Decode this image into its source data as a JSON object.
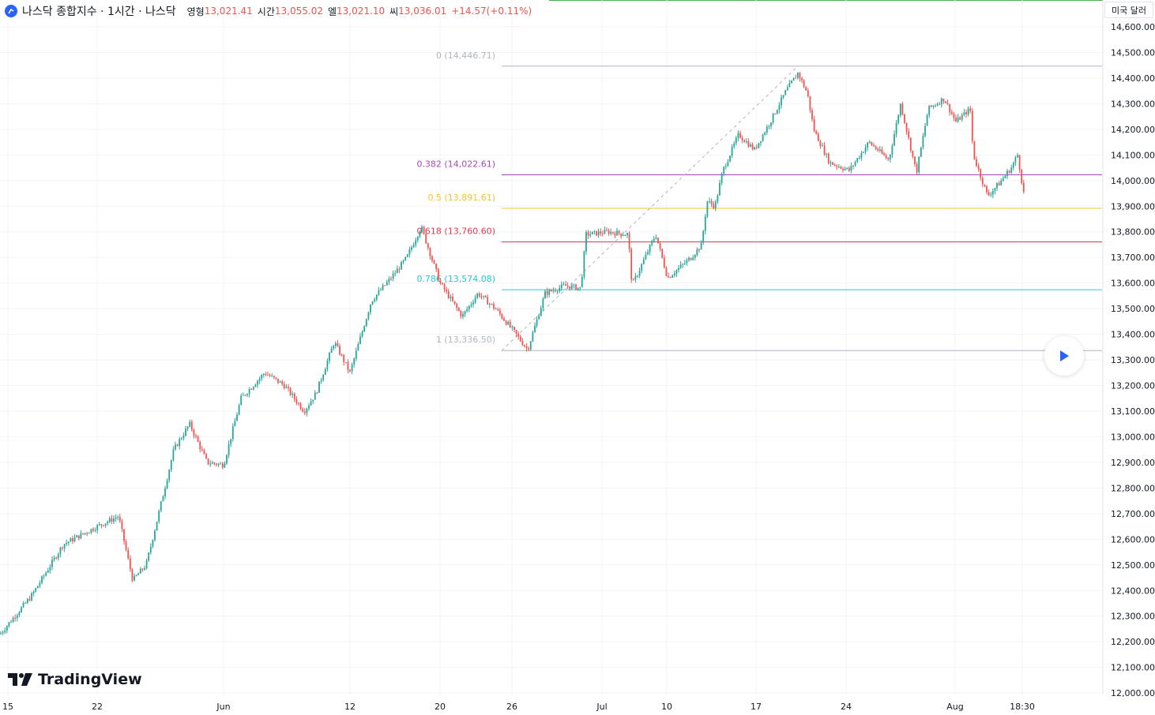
{
  "header": {
    "symbol_title": "나스닥 종합지수 · 1시간 · 나스닥",
    "open_label": "영형",
    "open_value": "13,021.41",
    "high_label": "시간",
    "high_value": "13,055.02",
    "low_label": "엘",
    "low_value": "13,021.10",
    "close_label": "씨",
    "close_value": "13,036.01",
    "change_value": "+14.57(+0.11%)"
  },
  "currency_button": "미국 달러",
  "branding": "TradingView",
  "colors": {
    "up": "#26a69a",
    "down": "#ef5350",
    "grid": "#f0f3fa",
    "fib_0": "#b2b5be",
    "fib_0382": "#ab47bc",
    "fib_05": "#fbc02d",
    "fib_0618": "#e53950",
    "fib_0786": "#26c6da",
    "fib_1": "#b2b5be"
  },
  "chart_data": {
    "type": "candlestick",
    "title": "나스닥 종합지수 · 1시간 · 나스닥",
    "ylim": [
      12000,
      14650
    ],
    "y_ticks": [
      "14,600.00",
      "14,500.00",
      "14,400.00",
      "14,300.00",
      "14,200.00",
      "14,100.00",
      "14,000.00",
      "13,900.00",
      "13,800.00",
      "13,700.00",
      "13,600.00",
      "13,500.00",
      "13,400.00",
      "13,300.00",
      "13,200.00",
      "13,100.00",
      "13,000.00",
      "12,900.00",
      "12,800.00",
      "12,700.00",
      "12,600.00",
      "12,500.00",
      "12,400.00",
      "12,300.00",
      "12,200.00",
      "12,100.00",
      "12,000.00"
    ],
    "x_ticks": [
      "15",
      "22",
      "Jun",
      "12",
      "20",
      "26",
      "Jul",
      "10",
      "17",
      "24",
      "Aug",
      "18:30"
    ],
    "approx_close_path": [
      {
        "t": "15",
        "v": 12230
      },
      {
        "t": "22",
        "v": 12650
      },
      {
        "t": "25",
        "v": 12440
      },
      {
        "t": "Jun",
        "v": 12890
      },
      {
        "t": "6",
        "v": 13250
      },
      {
        "t": "9",
        "v": 13110
      },
      {
        "t": "12",
        "v": 13360
      },
      {
        "t": "15",
        "v": 13650
      },
      {
        "t": "16",
        "v": 13820
      },
      {
        "t": "20",
        "v": 13470
      },
      {
        "t": "26",
        "v": 13340
      },
      {
        "t": "29",
        "v": 13590
      },
      {
        "t": "Jul",
        "v": 13800
      },
      {
        "t": "6",
        "v": 13600
      },
      {
        "t": "7",
        "v": 13790
      },
      {
        "t": "10",
        "v": 13700
      },
      {
        "t": "12",
        "v": 13940
      },
      {
        "t": "13",
        "v": 14050
      },
      {
        "t": "17",
        "v": 14300
      },
      {
        "t": "19",
        "v": 14420
      },
      {
        "t": "21",
        "v": 14080
      },
      {
        "t": "24",
        "v": 14050
      },
      {
        "t": "27",
        "v": 14150
      },
      {
        "t": "28",
        "v": 14320
      },
      {
        "t": "Aug",
        "v": 14280
      },
      {
        "t": "2",
        "v": 13950
      },
      {
        "t": "3",
        "v": 14080
      },
      {
        "t": "18:30",
        "v": 13910
      }
    ],
    "fib_levels": [
      {
        "label": "0 (14,446.71)",
        "value": 14446.71
      },
      {
        "label": "0.382 (14,022.61)",
        "value": 14022.61
      },
      {
        "label": "0.5 (13,891.61)",
        "value": 13891.61
      },
      {
        "label": "0.618 (13,760.60)",
        "value": 13760.6
      },
      {
        "label": "0.786 (13,574.08)",
        "value": 13574.08
      },
      {
        "label": "1 (13,336.50)",
        "value": 13336.5
      }
    ],
    "grid": true
  }
}
